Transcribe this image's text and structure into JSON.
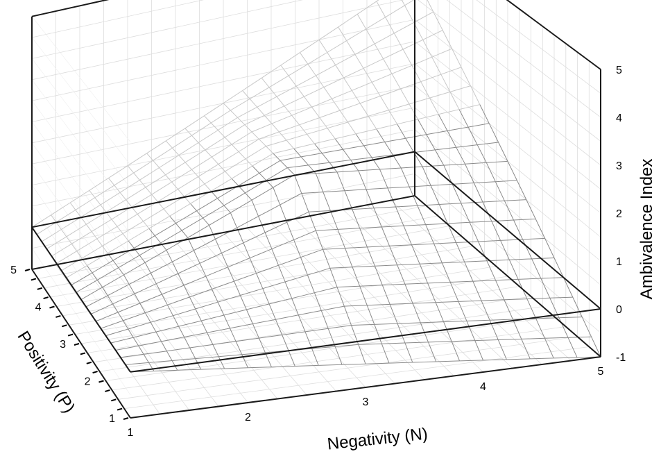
{
  "chart_data": {
    "type": "surface",
    "title": "",
    "xlabel": "Negativity (N)",
    "ylabel": "Positivity (P)",
    "zlabel": "Ambivalence Index",
    "x_ticks": [
      "1",
      "2",
      "3",
      "4",
      "5"
    ],
    "y_ticks": [
      "1",
      "2",
      "3",
      "4",
      "5"
    ],
    "z_ticks": [
      "-1",
      "0",
      "1",
      "2",
      "3",
      "4",
      "5"
    ],
    "xlim": [
      1,
      5
    ],
    "ylim": [
      1,
      5
    ],
    "zlim": [
      -1,
      5
    ],
    "grid_step": 0.25,
    "grid": true,
    "legend": "none",
    "colors": {
      "frame": "#1a1a1a",
      "grid": "#dddddd",
      "mesh_front": "#8a8a8a",
      "mesh_back": "#c8c8c8"
    },
    "surface_points": [
      {
        "n": 1,
        "p": 1,
        "ai": 0
      },
      {
        "n": 5,
        "p": 5,
        "ai": 4
      },
      {
        "n": 5,
        "p": 1,
        "ai": -1
      },
      {
        "n": 1,
        "p": 5,
        "ai": 0
      },
      {
        "n": 3,
        "p": 3,
        "ai": 2
      }
    ]
  }
}
